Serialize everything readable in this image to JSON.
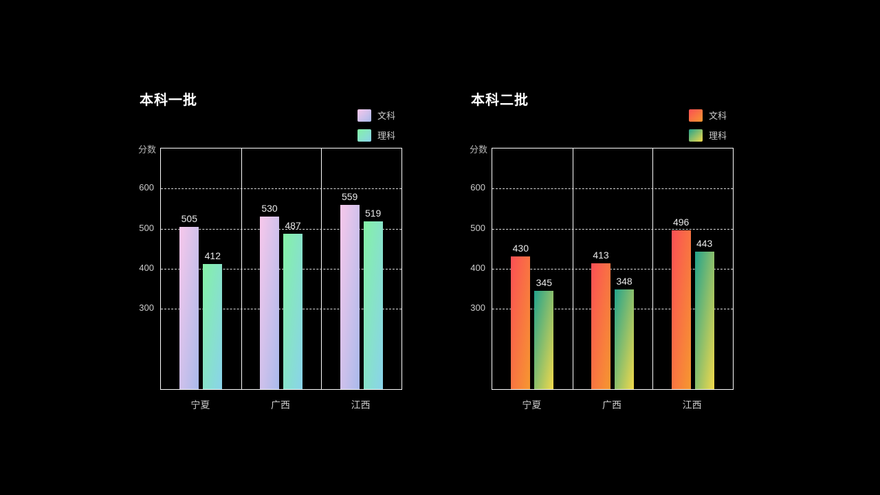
{
  "page": {
    "background": "#000000",
    "title_color": "#ffffff",
    "axis_text_color": "#cccccc"
  },
  "chart_data": [
    {
      "type": "bar",
      "title": "本科一批",
      "ylabel": "分数",
      "xlabel": "",
      "categories": [
        "宁夏",
        "广西",
        "江西"
      ],
      "yticks": [
        600,
        500,
        400,
        300
      ],
      "ylim": [
        100,
        700
      ],
      "grid": "dashed-horizontal",
      "legend_position": "top-right",
      "series": [
        {
          "name": "文科",
          "values": [
            505,
            530,
            559
          ],
          "gradient_start": "#f8c8eb",
          "gradient_end": "#a9baeb"
        },
        {
          "name": "理科",
          "values": [
            412,
            487,
            519
          ],
          "gradient_start": "#84f2a5",
          "gradient_end": "#8ad3eb"
        }
      ]
    },
    {
      "type": "bar",
      "title": "本科二批",
      "ylabel": "分数",
      "xlabel": "",
      "categories": [
        "宁夏",
        "广西",
        "江西"
      ],
      "yticks": [
        600,
        500,
        400,
        300
      ],
      "ylim": [
        100,
        700
      ],
      "grid": "dashed-horizontal",
      "legend_position": "top-right",
      "series": [
        {
          "name": "文科",
          "values": [
            430,
            413,
            496
          ],
          "gradient_start": "#fb4f55",
          "gradient_end": "#f6982f"
        },
        {
          "name": "理科",
          "values": [
            345,
            348,
            443
          ],
          "gradient_start": "#23a38c",
          "gradient_end": "#f2d94b"
        }
      ]
    }
  ]
}
